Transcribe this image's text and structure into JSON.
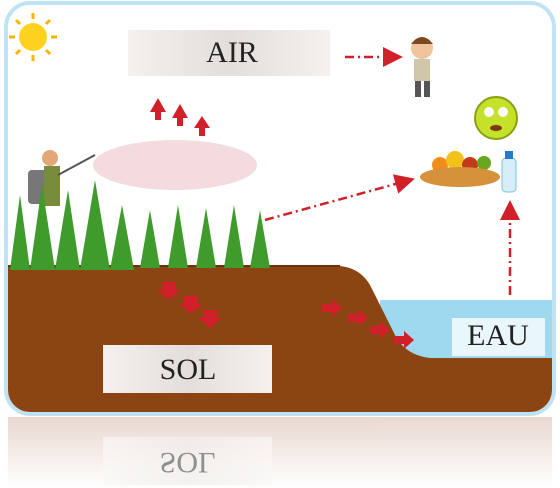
{
  "labels": {
    "air": "AIR",
    "soil": "SOL",
    "water": "EAU"
  }
}
